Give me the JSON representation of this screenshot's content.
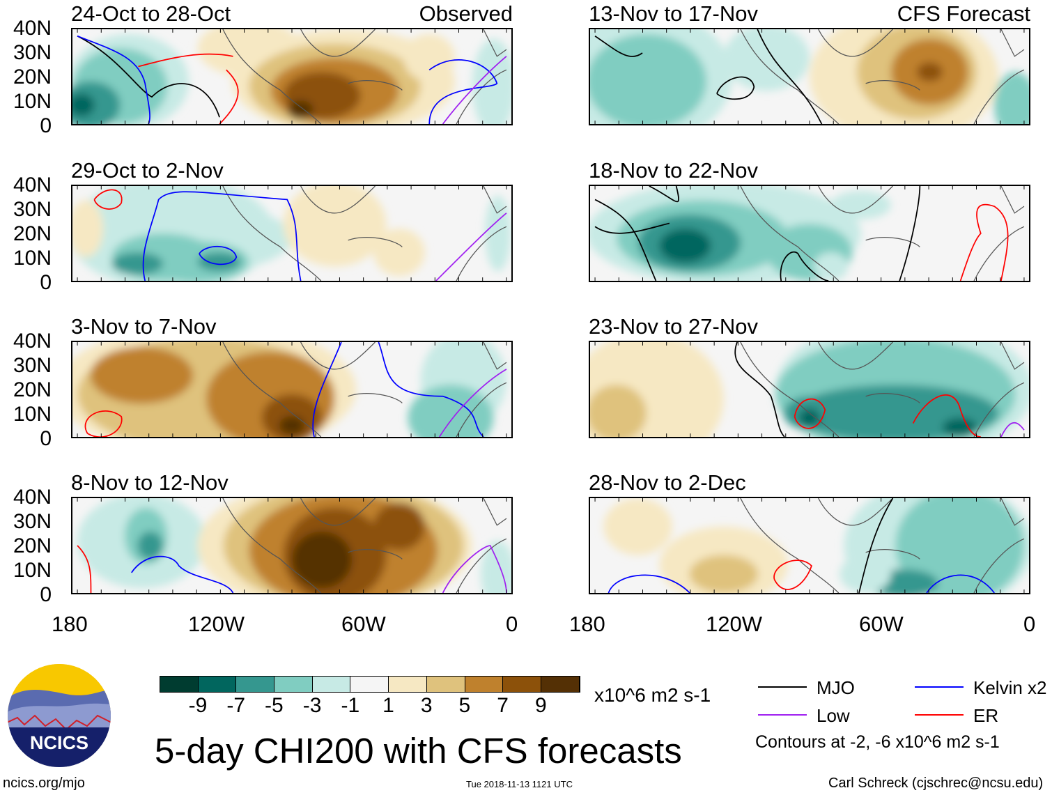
{
  "panels_left": [
    {
      "title": "24-Oct to 28-Oct",
      "tag": "Observed"
    },
    {
      "title": "29-Oct to 2-Nov",
      "tag": ""
    },
    {
      "title": "3-Nov to 7-Nov",
      "tag": ""
    },
    {
      "title": "8-Nov to 12-Nov",
      "tag": ""
    }
  ],
  "panels_right": [
    {
      "title": "13-Nov to 17-Nov",
      "tag": "CFS Forecast"
    },
    {
      "title": "18-Nov to 22-Nov",
      "tag": ""
    },
    {
      "title": "23-Nov to 27-Nov",
      "tag": ""
    },
    {
      "title": "28-Nov to 2-Dec",
      "tag": ""
    }
  ],
  "lat_labels": [
    "40N",
    "30N",
    "20N",
    "10N",
    "0"
  ],
  "lon_labels": [
    "180",
    "120W",
    "60W",
    "0"
  ],
  "colorbar": {
    "colors": [
      "#003c30",
      "#01665e",
      "#35978f",
      "#80cdc1",
      "#c7eae5",
      "#f5f5f5",
      "#f6e8c3",
      "#dfc27d",
      "#bf812d",
      "#8c510a",
      "#543005"
    ],
    "labels": [
      "-9",
      "-7",
      "-5",
      "-3",
      "-1",
      "1",
      "3",
      "5",
      "7",
      "9"
    ],
    "units": "x10^6 m2 s-1"
  },
  "legend": {
    "items": [
      {
        "label": "MJO",
        "color": "#000000"
      },
      {
        "label": "Kelvin x2",
        "color": "#0000ff"
      },
      {
        "label": "Low",
        "color": "#a020f0"
      },
      {
        "label": "ER",
        "color": "#ff0000"
      }
    ],
    "note": "Contours at -2, -6 x10^6 m2 s-1"
  },
  "title": "5-day CHI200 with CFS forecasts",
  "logo_text": "NCICS",
  "footer": {
    "url": "ncics.org/mjo",
    "timestamp": "Tue 2018-11-13 1121 UTC",
    "author": "Carl Schreck (cjschrec@ncsu.edu)"
  }
}
